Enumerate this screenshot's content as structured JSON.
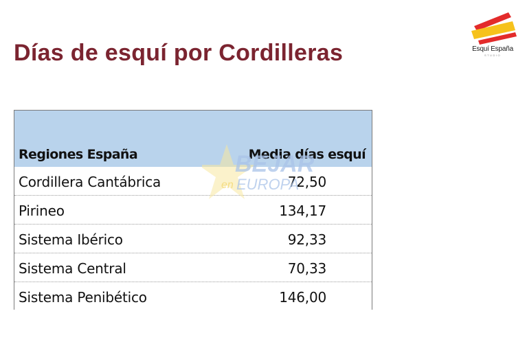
{
  "title": "Días de esquí por Cordilleras",
  "logo": {
    "name": "Esquí España",
    "sub": "STUDIO",
    "colors": {
      "red": "#e32b2b",
      "yellow": "#f6c21c"
    }
  },
  "table": {
    "headers": [
      "Regiones España",
      "Media días esquí"
    ],
    "rows": [
      {
        "region": "Cordillera  Cantábrica",
        "value": "72,50"
      },
      {
        "region": "Pirineo",
        "value": "134,17"
      },
      {
        "region": "Sistema Ibérico",
        "value": "92,33"
      },
      {
        "region": "Sistema Central",
        "value": "70,33"
      },
      {
        "region": "Sistema Penibético",
        "value": "146,00"
      }
    ],
    "header_color": "#b9d3ec"
  },
  "watermark": {
    "main": "BEJAR",
    "prefix": "en",
    "sub": "EUROPA"
  },
  "colors": {
    "title": "#7b2430"
  }
}
